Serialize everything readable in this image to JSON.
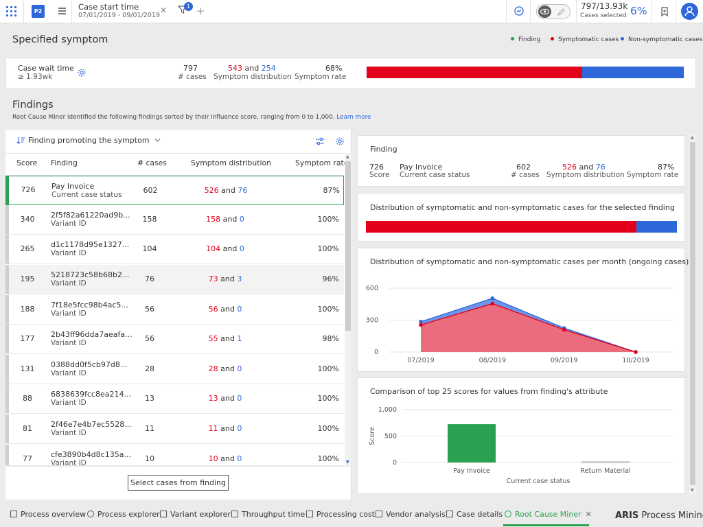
{
  "toolbar": {
    "project_badge": "P2",
    "filter_title": "Case start time",
    "filter_range": "07/01/2019 - 09/01/2019",
    "filter_count": "1",
    "cases_count": "797/13.93k",
    "cases_label": "Cases selected",
    "cases_pct": "6%"
  },
  "specified": {
    "title": "Specified symptom",
    "legend": [
      {
        "label": "Finding",
        "color": "#2aa150"
      },
      {
        "label": "Symptomatic cases",
        "color": "#e3001b"
      },
      {
        "label": "Non-symptomatic cases",
        "color": "#2d67d9"
      }
    ],
    "name": "Case wait time",
    "condition": "≥ 1.93wk",
    "cases": "797",
    "cases_label": "# cases",
    "symp": "543",
    "and": "and",
    "nonsymp": "254",
    "dist_label": "Symptom distribution",
    "rate": "68%",
    "rate_label": "Symptom rate",
    "bar_fraction": 0.68
  },
  "findings": {
    "title": "Findings",
    "desc": "Root Cause Miner identified the following findings sorted by their influence score, ranging from 0 to 1,000.",
    "learn_more": "Learn more",
    "sort_label": "Finding promoting the symptom",
    "columns": [
      "Score",
      "Finding",
      "# cases",
      "Symptom distribution",
      "Symptom rate"
    ],
    "rows": [
      {
        "score": "726",
        "name": "Pay Invoice",
        "attr": "Current case status",
        "cases": "602",
        "s": "526",
        "n": "76",
        "rate": "87%"
      },
      {
        "score": "340",
        "name": "2f5f82a61220ad9b...",
        "attr": "Variant ID",
        "cases": "158",
        "s": "158",
        "n": "0",
        "rate": "100%"
      },
      {
        "score": "265",
        "name": "d1c1178d95e1327...",
        "attr": "Variant ID",
        "cases": "104",
        "s": "104",
        "n": "0",
        "rate": "100%"
      },
      {
        "score": "195",
        "name": "5218723c58b68b2...",
        "attr": "Variant ID",
        "cases": "76",
        "s": "73",
        "n": "3",
        "rate": "96%"
      },
      {
        "score": "188",
        "name": "7f18e5fcc98b4ac5...",
        "attr": "Variant ID",
        "cases": "56",
        "s": "56",
        "n": "0",
        "rate": "100%"
      },
      {
        "score": "177",
        "name": "2b43ff96dda7aeafa...",
        "attr": "Variant ID",
        "cases": "56",
        "s": "55",
        "n": "1",
        "rate": "98%"
      },
      {
        "score": "131",
        "name": "0388dd0f5cb97d8...",
        "attr": "Variant ID",
        "cases": "28",
        "s": "28",
        "n": "0",
        "rate": "100%"
      },
      {
        "score": "88",
        "name": "6838639fcc8ea214...",
        "attr": "Variant ID",
        "cases": "13",
        "s": "13",
        "n": "0",
        "rate": "100%"
      },
      {
        "score": "81",
        "name": "2f46e7e4b7ec5528...",
        "attr": "Variant ID",
        "cases": "11",
        "s": "11",
        "n": "0",
        "rate": "100%"
      },
      {
        "score": "77",
        "name": "cfe3890b4d8c135a...",
        "attr": "Variant ID",
        "cases": "10",
        "s": "10",
        "n": "0",
        "rate": "100%"
      }
    ],
    "select_button": "Select cases from finding"
  },
  "detail": {
    "title": "Finding",
    "score": "726",
    "score_label": "Score",
    "name": "Pay Invoice",
    "attr": "Current case status",
    "cases": "602",
    "cases_label": "# cases",
    "symp": "526",
    "nonsymp": "76",
    "dist_label": "Symptom distribution",
    "rate": "87%",
    "rate_label": "Symptom rate",
    "dist_title": "Distribution of symptomatic and non-symptomatic cases for the selected finding",
    "dist_fraction": 0.87,
    "monthly_title": "Distribution of symptomatic and non-symptomatic cases per month (ongoing cases)",
    "scores_title": "Comparison of top 25 scores for values from finding's attribute"
  },
  "chart_data": [
    {
      "type": "area",
      "title": "Distribution of symptomatic and non-symptomatic cases per month (ongoing cases)",
      "categories": [
        "07/2019",
        "08/2019",
        "09/2019",
        "10/2019"
      ],
      "series": [
        {
          "name": "Symptomatic cases",
          "values": [
            255,
            455,
            210,
            0
          ],
          "color": "#e3001b"
        },
        {
          "name": "Non-symptomatic cases",
          "values": [
            30,
            50,
            15,
            0
          ],
          "color": "#2d67d9"
        }
      ],
      "stacked": true,
      "ylim": [
        0,
        600
      ],
      "yticks": [
        "0",
        "300",
        "600"
      ]
    },
    {
      "type": "bar",
      "title": "Comparison of top 25 scores for values from finding's attribute",
      "categories": [
        "Pay Invoice",
        "Return Material"
      ],
      "values": [
        726,
        25
      ],
      "colors": [
        "#2aa150",
        "#cfcfcf"
      ],
      "xlabel": "Current case status",
      "ylabel": "Score",
      "ylim": [
        0,
        1000
      ],
      "yticks": [
        "0",
        "500",
        "1,000"
      ]
    }
  ],
  "tabs": [
    {
      "label": "Process overview"
    },
    {
      "label": "Process explorer"
    },
    {
      "label": "Variant explorer"
    },
    {
      "label": "Throughput time"
    },
    {
      "label": "Processing cost"
    },
    {
      "label": "Vendor analysis"
    },
    {
      "label": "Case details"
    },
    {
      "label": "Root Cause Miner",
      "active": true
    }
  ],
  "brand": {
    "bold": "ARIS",
    "rest": " Process Mining"
  }
}
